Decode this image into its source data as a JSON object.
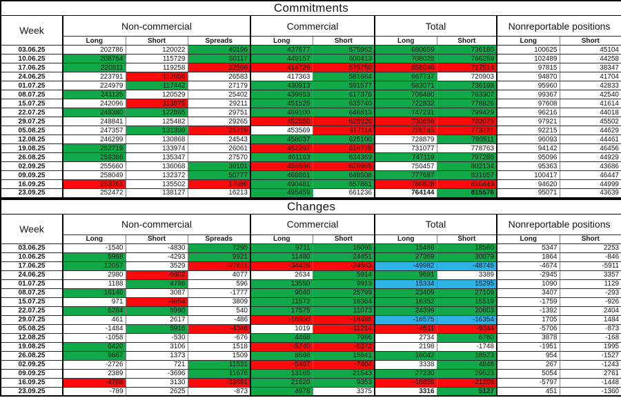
{
  "colors": {
    "green": "#11a849",
    "red": "#fa0a0a",
    "blue": "#2fb2e6",
    "white": "#ffffff"
  },
  "columns": {
    "week_label": "Week",
    "groups": [
      {
        "label": "Non-commercial",
        "cols": [
          "Long",
          "Short",
          "Spreads"
        ]
      },
      {
        "label": "Commercial",
        "cols": [
          "Long",
          "Short"
        ]
      },
      {
        "label": "Total",
        "cols": [
          "Long",
          "Short"
        ]
      },
      {
        "label": "Nonreportable positions",
        "cols": [
          "Long",
          "Short"
        ]
      }
    ]
  },
  "tables": [
    {
      "title": "Commitments",
      "rows": [
        {
          "date": "03.06.25",
          "values": [
            "202786",
            "120022",
            "40196",
            "437677",
            "575962",
            "680659",
            "736180",
            "100625",
            "45104"
          ],
          "colors": [
            "w",
            "w",
            "g",
            "g",
            "g",
            "g",
            "g",
            "w",
            "w"
          ]
        },
        {
          "date": "10.06.25",
          "values": [
            "208754",
            "115729",
            "50117",
            "449157",
            "600413",
            "708028",
            "766259",
            "102489",
            "44258"
          ],
          "colors": [
            "g",
            "w",
            "g",
            "g",
            "g",
            "g",
            "g",
            "w",
            "w"
          ]
        },
        {
          "date": "17.06.25",
          "values": [
            "220811",
            "119258",
            "22506",
            "414729",
            "575750",
            "658046",
            "717514",
            "97815",
            "38347"
          ],
          "colors": [
            "g",
            "w",
            "r",
            "r",
            "r",
            "r",
            "r",
            "w",
            "w"
          ]
        },
        {
          "date": "24.06.25",
          "values": [
            "223791",
            "112656",
            "26583",
            "417363",
            "581664",
            "667737",
            "720903",
            "94870",
            "41704"
          ],
          "colors": [
            "w",
            "r",
            "w",
            "w",
            "g",
            "g",
            "w",
            "w",
            "w"
          ]
        },
        {
          "date": "01.07.25",
          "values": [
            "224979",
            "117442",
            "27179",
            "430913",
            "591577",
            "683071",
            "736198",
            "95960",
            "42833"
          ],
          "colors": [
            "w",
            "g",
            "w",
            "g",
            "g",
            "g",
            "g",
            "w",
            "w"
          ]
        },
        {
          "date": "08.07.25",
          "values": [
            "241125",
            "120529",
            "25402",
            "439953",
            "617376",
            "706480",
            "763307",
            "99367",
            "42540"
          ],
          "colors": [
            "g",
            "w",
            "w",
            "g",
            "g",
            "g",
            "g",
            "w",
            "w"
          ]
        },
        {
          "date": "15.07.25",
          "values": [
            "242096",
            "113875",
            "29211",
            "451525",
            "635740",
            "722832",
            "778826",
            "97608",
            "41614"
          ],
          "colors": [
            "w",
            "r",
            "w",
            "g",
            "g",
            "g",
            "g",
            "w",
            "w"
          ]
        },
        {
          "date": "22.07.25",
          "values": [
            "248380",
            "122865",
            "29751",
            "469100",
            "646813",
            "747231",
            "799429",
            "96216",
            "44018"
          ],
          "colors": [
            "g",
            "g",
            "w",
            "g",
            "g",
            "g",
            "g",
            "w",
            "w"
          ]
        },
        {
          "date": "29.07.25",
          "values": [
            "248841",
            "125482",
            "29265",
            "452550",
            "628328",
            "730656",
            "783075",
            "97921",
            "45502"
          ],
          "colors": [
            "w",
            "w",
            "w",
            "r",
            "r",
            "r",
            "r",
            "w",
            "w"
          ]
        },
        {
          "date": "05.08.25",
          "values": [
            "247357",
            "131398",
            "25219",
            "453569",
            "617114",
            "726145",
            "773731",
            "92215",
            "44629"
          ],
          "colors": [
            "w",
            "g",
            "r",
            "w",
            "r",
            "r",
            "r",
            "w",
            "w"
          ]
        },
        {
          "date": "12.08.25",
          "values": [
            "246299",
            "130868",
            "24543",
            "458037",
            "625100",
            "728879",
            "780511",
            "96093",
            "44461"
          ],
          "colors": [
            "w",
            "w",
            "w",
            "g",
            "g",
            "w",
            "g",
            "w",
            "w"
          ]
        },
        {
          "date": "19.08.25",
          "values": [
            "252719",
            "133974",
            "26061",
            "452297",
            "618728",
            "731077",
            "778763",
            "94142",
            "46456"
          ],
          "colors": [
            "g",
            "w",
            "w",
            "r",
            "r",
            "w",
            "w",
            "w",
            "w"
          ]
        },
        {
          "date": "26.08.25",
          "values": [
            "258386",
            "135347",
            "27570",
            "461163",
            "634369",
            "747119",
            "797286",
            "95096",
            "44929"
          ],
          "colors": [
            "g",
            "w",
            "w",
            "g",
            "g",
            "g",
            "g",
            "w",
            "w"
          ]
        },
        {
          "date": "02.09.25",
          "values": [
            "255660",
            "136068",
            "39101",
            "455696",
            "626965",
            "750457",
            "802134",
            "95363",
            "43686"
          ],
          "colors": [
            "w",
            "w",
            "g",
            "r",
            "r",
            "w",
            "g",
            "w",
            "w"
          ]
        },
        {
          "date": "09.09.25",
          "values": [
            "258049",
            "132372",
            "50777",
            "468861",
            "648508",
            "777687",
            "831657",
            "100417",
            "46447"
          ],
          "colors": [
            "w",
            "w",
            "g",
            "g",
            "g",
            "g",
            "g",
            "w",
            "w"
          ]
        },
        {
          "date": "16.09.25",
          "values": [
            "253261",
            "135502",
            "17086",
            "490481",
            "657861",
            "760828",
            "810449",
            "94620",
            "44999"
          ],
          "colors": [
            "r",
            "w",
            "r",
            "g",
            "g",
            "r",
            "r",
            "w",
            "w"
          ]
        },
        {
          "date": "23.09.25",
          "values": [
            "252472",
            "138127",
            "16213",
            "495459",
            "661236",
            "764144",
            "815576",
            "95071",
            "43639"
          ],
          "colors": [
            "w",
            "w",
            "w",
            "g",
            "w",
            "w",
            "g",
            "w",
            "w"
          ],
          "bold": [
            5,
            6
          ]
        }
      ]
    },
    {
      "title": "Changes",
      "rows": [
        {
          "date": "03.06.25",
          "values": [
            "-1540",
            "-4830",
            "7295",
            "9711",
            "16095",
            "15466",
            "18560",
            "5347",
            "2253"
          ],
          "colors": [
            "w",
            "w",
            "g",
            "g",
            "g",
            "g",
            "g",
            "w",
            "w"
          ]
        },
        {
          "date": "10.06.25",
          "values": [
            "5968",
            "-4293",
            "9921",
            "11480",
            "24451",
            "27369",
            "30079",
            "1864",
            "-846"
          ],
          "colors": [
            "g",
            "w",
            "g",
            "g",
            "g",
            "g",
            "g",
            "w",
            "w"
          ]
        },
        {
          "date": "17.06.25",
          "values": [
            "12057",
            "3529",
            "-27611",
            "-34428",
            "-24663",
            "-49982",
            "-48745",
            "-4674",
            "-5911"
          ],
          "colors": [
            "g",
            "w",
            "r",
            "r",
            "r",
            "b",
            "b",
            "w",
            "w"
          ]
        },
        {
          "date": "24.06.25",
          "values": [
            "2980",
            "-6602",
            "4077",
            "2634",
            "5914",
            "9691",
            "3389",
            "-2945",
            "3357"
          ],
          "colors": [
            "w",
            "r",
            "w",
            "w",
            "g",
            "g",
            "w",
            "w",
            "w"
          ]
        },
        {
          "date": "01.07.25",
          "values": [
            "1188",
            "4786",
            "596",
            "13550",
            "9913",
            "15334",
            "15295",
            "1090",
            "1129"
          ],
          "colors": [
            "w",
            "g",
            "w",
            "g",
            "g",
            "b",
            "b",
            "w",
            "w"
          ]
        },
        {
          "date": "08.07.25",
          "values": [
            "16146",
            "3087",
            "-1777",
            "9040",
            "25799",
            "23409",
            "27109",
            "3407",
            "-293"
          ],
          "colors": [
            "g",
            "w",
            "w",
            "g",
            "g",
            "g",
            "g",
            "w",
            "w"
          ]
        },
        {
          "date": "15.07.25",
          "values": [
            "971",
            "-6654",
            "3809",
            "11572",
            "18364",
            "16352",
            "15519",
            "-1759",
            "-926"
          ],
          "colors": [
            "w",
            "r",
            "w",
            "g",
            "g",
            "g",
            "g",
            "w",
            "w"
          ]
        },
        {
          "date": "22.07.25",
          "values": [
            "6284",
            "8990",
            "540",
            "17575",
            "11073",
            "24399",
            "20603",
            "-1392",
            "2404"
          ],
          "colors": [
            "g",
            "g",
            "w",
            "g",
            "g",
            "g",
            "g",
            "w",
            "w"
          ]
        },
        {
          "date": "29.07.25",
          "values": [
            "461",
            "2617",
            "-486",
            "-16550",
            "-18485",
            "-16575",
            "-16354",
            "1705",
            "1484"
          ],
          "colors": [
            "w",
            "w",
            "w",
            "r",
            "r",
            "b",
            "b",
            "w",
            "w"
          ]
        },
        {
          "date": "05.08.25",
          "values": [
            "-1484",
            "5916",
            "-4046",
            "1019",
            "-11214",
            "-4511",
            "-9344",
            "-5706",
            "-873"
          ],
          "colors": [
            "w",
            "g",
            "r",
            "w",
            "r",
            "r",
            "r",
            "w",
            "w"
          ]
        },
        {
          "date": "12.08.25",
          "values": [
            "-1058",
            "-530",
            "-676",
            "4468",
            "7986",
            "2734",
            "6780",
            "3878",
            "-168"
          ],
          "colors": [
            "w",
            "w",
            "w",
            "g",
            "g",
            "w",
            "g",
            "w",
            "w"
          ]
        },
        {
          "date": "19.08.25",
          "values": [
            "6420",
            "3106",
            "1518",
            "-5740",
            "-6372",
            "2198",
            "-1748",
            "-1951",
            "1995"
          ],
          "colors": [
            "g",
            "w",
            "w",
            "r",
            "r",
            "w",
            "w",
            "w",
            "w"
          ]
        },
        {
          "date": "26.08.25",
          "values": [
            "5667",
            "1373",
            "1509",
            "8866",
            "15641",
            "16042",
            "18523",
            "954",
            "-1527"
          ],
          "colors": [
            "g",
            "w",
            "w",
            "g",
            "g",
            "g",
            "g",
            "w",
            "w"
          ]
        },
        {
          "date": "02.09.25",
          "values": [
            "-2726",
            "721",
            "11531",
            "-5467",
            "-7404",
            "3338",
            "4848",
            "267",
            "-1243"
          ],
          "colors": [
            "w",
            "w",
            "g",
            "r",
            "r",
            "w",
            "g",
            "w",
            "w"
          ]
        },
        {
          "date": "09.09.25",
          "values": [
            "2389",
            "-3696",
            "11676",
            "13165",
            "21543",
            "27230",
            "29523",
            "5054",
            "2761"
          ],
          "colors": [
            "w",
            "w",
            "g",
            "g",
            "g",
            "g",
            "g",
            "w",
            "w"
          ]
        },
        {
          "date": "16.09.25",
          "values": [
            "-4788",
            "3130",
            "-33691",
            "21620",
            "9353",
            "-16859",
            "-21208",
            "-5797",
            "-1448"
          ],
          "colors": [
            "r",
            "w",
            "r",
            "g",
            "g",
            "r",
            "r",
            "w",
            "w"
          ]
        },
        {
          "date": "23.09.25",
          "values": [
            "-789",
            "2625",
            "-873",
            "4978",
            "3375",
            "3316",
            "5127",
            "451",
            "-1360"
          ],
          "colors": [
            "w",
            "w",
            "w",
            "g",
            "w",
            "w",
            "g",
            "w",
            "w"
          ],
          "bold": [
            5,
            6
          ]
        }
      ]
    }
  ]
}
